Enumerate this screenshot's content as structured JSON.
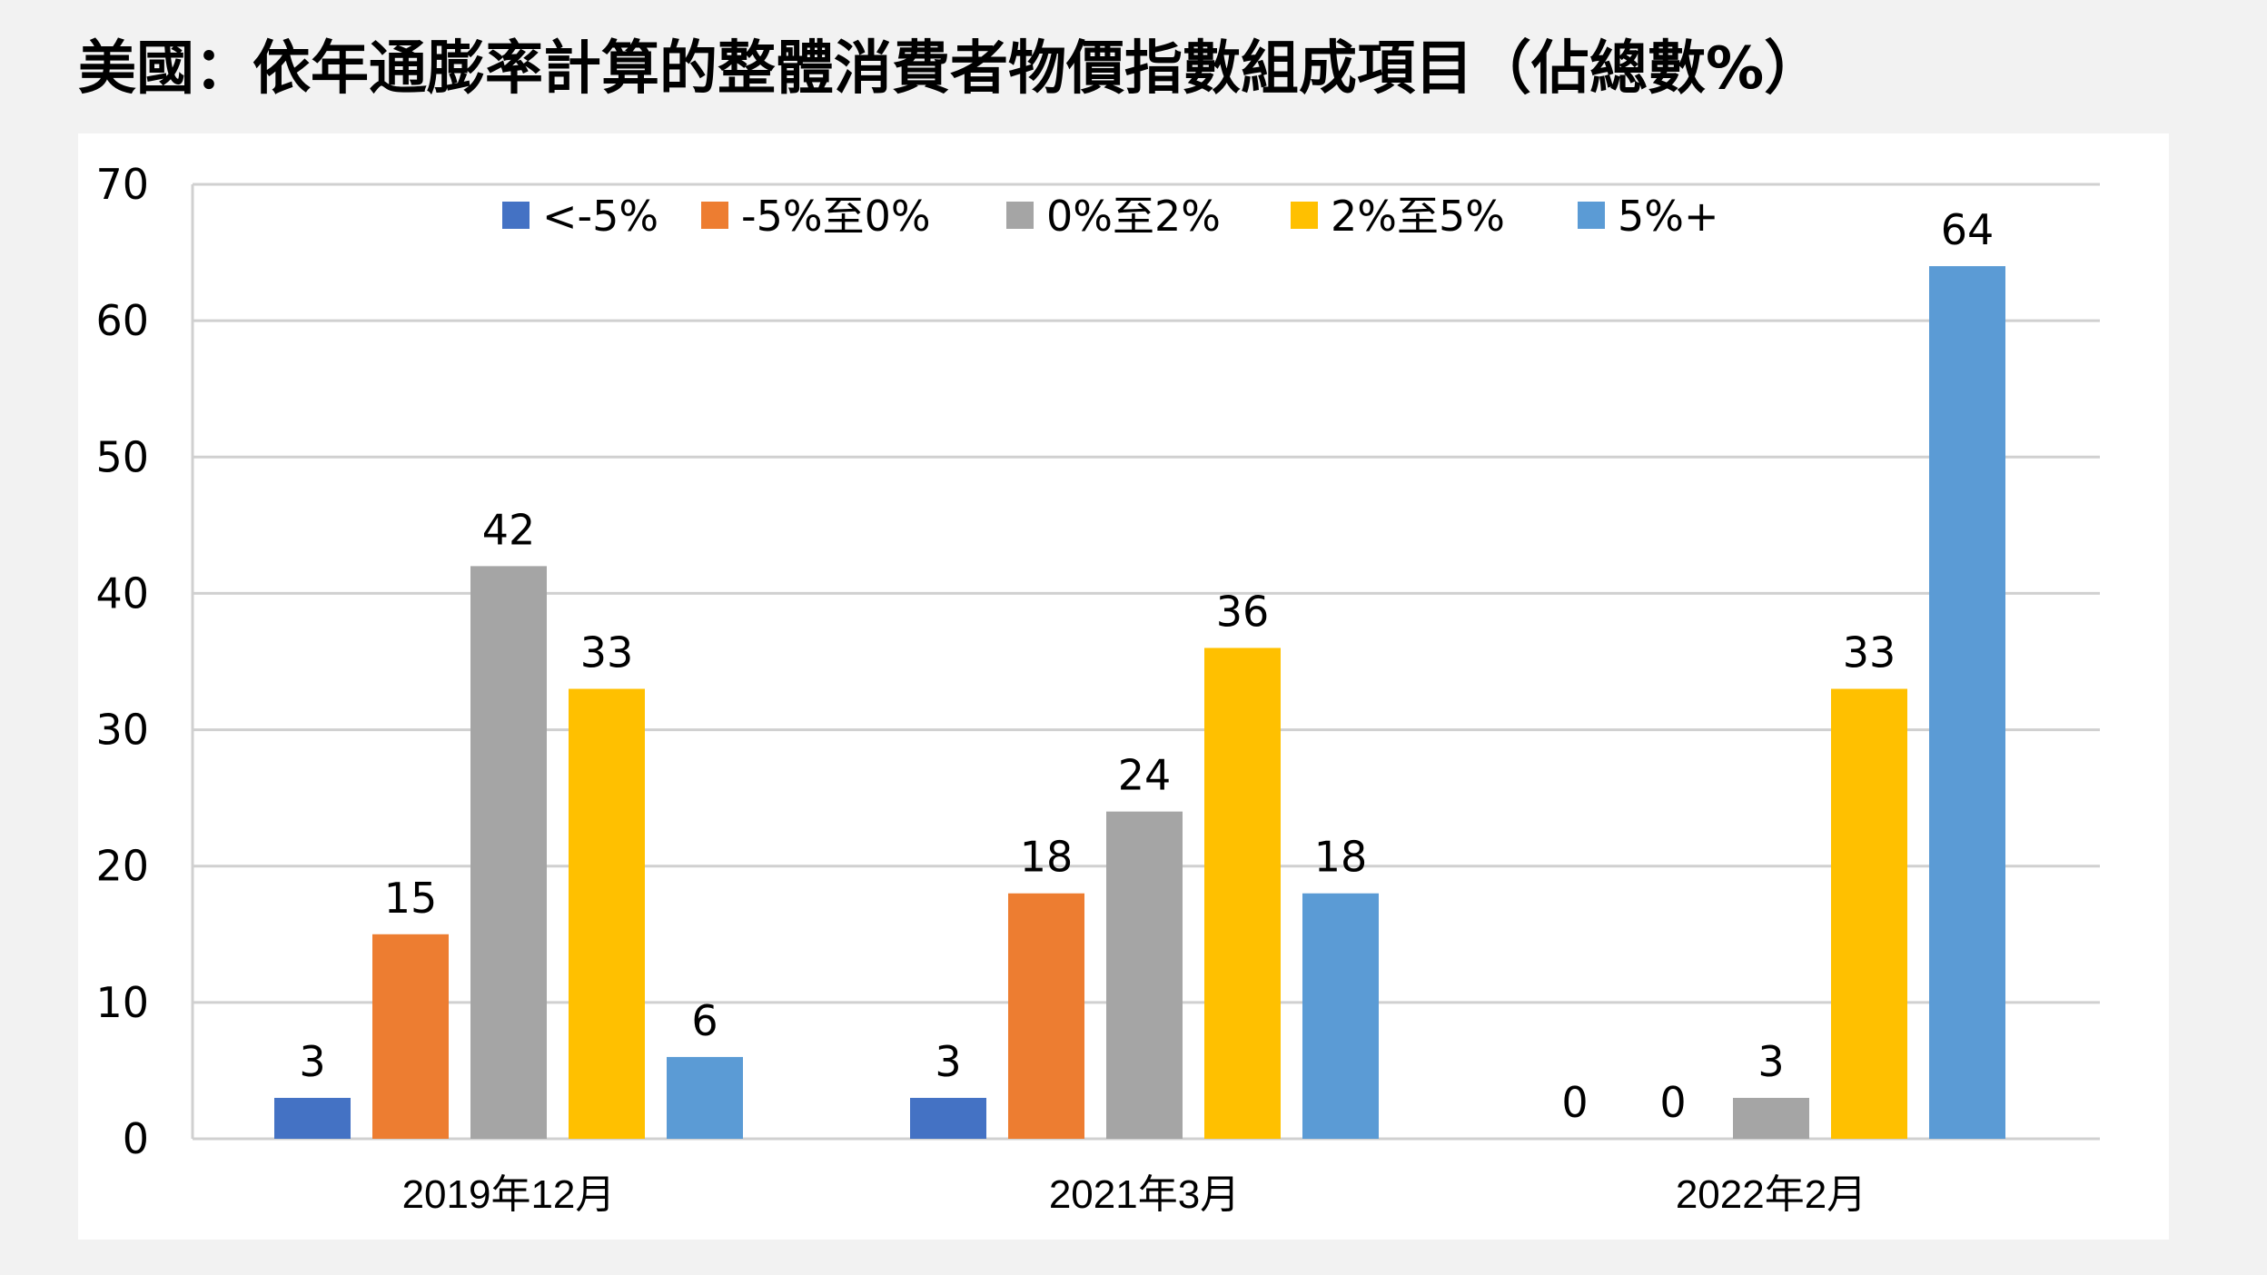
{
  "title": "美國：依年通膨率計算的整體消費者物價指數組成項目（佔總數%）",
  "chart_data": {
    "type": "bar",
    "categories": [
      "2019年12月",
      "2021年3月",
      "2022年2月"
    ],
    "series": [
      {
        "name": "<-5%",
        "color": "#4472c4",
        "values": [
          3,
          3,
          0
        ]
      },
      {
        "name": "-5%至0%",
        "color": "#ed7d31",
        "values": [
          15,
          18,
          0
        ]
      },
      {
        "name": "0%至2%",
        "color": "#a5a5a5",
        "values": [
          42,
          24,
          3
        ]
      },
      {
        "name": "2%至5%",
        "color": "#ffc000",
        "values": [
          33,
          36,
          33
        ]
      },
      {
        "name": "5%+",
        "color": "#5b9bd5",
        "values": [
          6,
          18,
          64
        ]
      }
    ],
    "ylim": [
      0,
      70
    ],
    "yticks": [
      0,
      10,
      20,
      30,
      40,
      50,
      60,
      70
    ],
    "grid": true,
    "legend_position": "top",
    "xlabel": "",
    "ylabel": ""
  }
}
